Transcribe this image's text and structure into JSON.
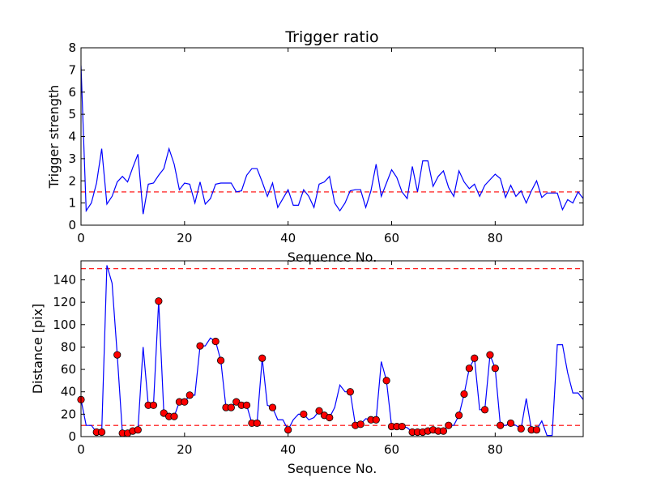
{
  "chart_data": [
    {
      "type": "line",
      "title": "Trigger ratio",
      "xlabel": "Sequence No.",
      "ylabel": "Trigger strength",
      "xlim": [
        0,
        97
      ],
      "ylim": [
        0,
        8
      ],
      "xticks": [
        0,
        20,
        40,
        60,
        80
      ],
      "yticks": [
        0,
        1,
        2,
        3,
        4,
        5,
        6,
        7,
        8
      ],
      "threshold": 1.5,
      "line_color": "#0000ff",
      "threshold_color": "#ff0000",
      "series": [
        {
          "x": [
            0,
            1,
            2,
            3,
            4,
            5,
            6,
            7,
            8,
            9,
            10,
            11,
            12,
            13,
            14,
            15,
            16,
            17,
            18,
            19,
            20,
            21,
            22,
            23,
            24,
            25,
            26,
            27,
            28,
            29,
            30,
            31,
            32,
            33,
            34,
            35,
            36,
            37,
            38,
            39,
            40,
            41,
            42,
            43,
            44,
            45,
            46,
            47,
            48,
            49,
            50,
            51,
            52,
            53,
            54,
            55,
            56,
            57,
            58,
            59,
            60,
            61,
            62,
            63,
            64,
            65,
            66,
            67,
            68,
            69,
            70,
            71,
            72,
            73,
            74,
            75,
            76,
            77,
            78,
            79,
            80,
            81,
            82,
            83,
            84,
            85,
            86,
            87,
            88,
            89,
            90,
            91,
            92,
            93,
            94,
            95,
            96,
            97
          ],
          "values": [
            7.2,
            0.65,
            1.0,
            1.9,
            3.45,
            0.95,
            1.3,
            1.95,
            2.2,
            1.95,
            2.6,
            3.2,
            0.5,
            1.85,
            1.9,
            2.25,
            2.55,
            3.45,
            2.75,
            1.6,
            1.9,
            1.85,
            1.0,
            1.95,
            0.95,
            1.2,
            1.85,
            1.9,
            1.9,
            1.9,
            1.5,
            1.55,
            2.25,
            2.55,
            2.55,
            1.95,
            1.3,
            1.9,
            0.8,
            1.2,
            1.6,
            0.9,
            0.9,
            1.6,
            1.3,
            0.8,
            1.85,
            1.95,
            2.2,
            1.0,
            0.65,
            1.0,
            1.55,
            1.6,
            1.6,
            0.8,
            1.55,
            2.75,
            1.3,
            1.9,
            2.5,
            2.15,
            1.5,
            1.2,
            2.65,
            1.5,
            2.9,
            2.9,
            1.75,
            2.2,
            2.45,
            1.7,
            1.3,
            2.45,
            1.95,
            1.65,
            1.85,
            1.3,
            1.8,
            2.05,
            2.3,
            2.1,
            1.25,
            1.8,
            1.3,
            1.55,
            1.0,
            1.55,
            2.0,
            1.25,
            1.45,
            1.45,
            1.45,
            0.7,
            1.15,
            1.0,
            1.5,
            1.2
          ]
        }
      ]
    },
    {
      "type": "line",
      "title": "",
      "xlabel": "Sequence No.",
      "ylabel": "Distance [pix]",
      "xlim": [
        0,
        97
      ],
      "ylim": [
        0,
        157
      ],
      "xticks": [
        0,
        20,
        40,
        60,
        80
      ],
      "yticks": [
        0,
        20,
        40,
        60,
        80,
        100,
        120,
        140
      ],
      "thresholds": [
        10,
        150
      ],
      "line_color": "#0000ff",
      "threshold_color": "#ff0000",
      "marker_color": "#ff0000",
      "series": [
        {
          "x": [
            0,
            1,
            2,
            3,
            4,
            5,
            6,
            7,
            8,
            9,
            10,
            11,
            12,
            13,
            14,
            15,
            16,
            17,
            18,
            19,
            20,
            21,
            22,
            23,
            24,
            25,
            26,
            27,
            28,
            29,
            30,
            31,
            32,
            33,
            34,
            35,
            36,
            37,
            38,
            39,
            40,
            41,
            42,
            43,
            44,
            45,
            46,
            47,
            48,
            49,
            50,
            51,
            52,
            53,
            54,
            55,
            56,
            57,
            58,
            59,
            60,
            61,
            62,
            63,
            64,
            65,
            66,
            67,
            68,
            69,
            70,
            71,
            72,
            73,
            74,
            75,
            76,
            77,
            78,
            79,
            80,
            81,
            82,
            83,
            84,
            85,
            86,
            87,
            88,
            89,
            90,
            91,
            92,
            93,
            94,
            95,
            96,
            97
          ],
          "values": [
            33,
            10,
            10,
            4,
            4,
            153,
            137,
            73,
            3,
            3,
            5,
            6,
            80,
            28,
            28,
            121,
            21,
            18,
            18,
            31,
            31,
            37,
            37,
            81,
            81,
            88,
            85,
            68,
            26,
            26,
            31,
            28,
            28,
            12,
            12,
            70,
            28,
            26,
            15,
            15,
            6,
            15,
            20,
            20,
            15,
            17,
            23,
            19,
            17,
            26,
            46,
            40,
            40,
            10,
            11,
            16,
            15,
            15,
            67,
            50,
            9,
            9,
            9,
            8,
            4,
            4,
            4,
            5,
            6,
            5,
            5,
            10,
            10,
            19,
            38,
            61,
            70,
            24,
            24,
            73,
            61,
            10,
            10,
            12,
            10,
            7,
            34,
            6,
            6,
            14,
            1,
            1,
            82,
            82,
            57,
            39,
            39,
            33
          ],
          "markers": [
            0,
            3,
            4,
            7,
            8,
            9,
            10,
            11,
            13,
            14,
            15,
            16,
            17,
            18,
            19,
            20,
            21,
            23,
            26,
            27,
            28,
            29,
            30,
            31,
            32,
            33,
            34,
            35,
            37,
            40,
            43,
            46,
            47,
            48,
            52,
            53,
            54,
            56,
            57,
            59,
            60,
            61,
            62,
            64,
            65,
            66,
            67,
            68,
            69,
            70,
            71,
            73,
            74,
            75,
            76,
            78,
            79,
            80,
            81,
            83,
            85,
            87,
            88
          ]
        }
      ]
    }
  ]
}
